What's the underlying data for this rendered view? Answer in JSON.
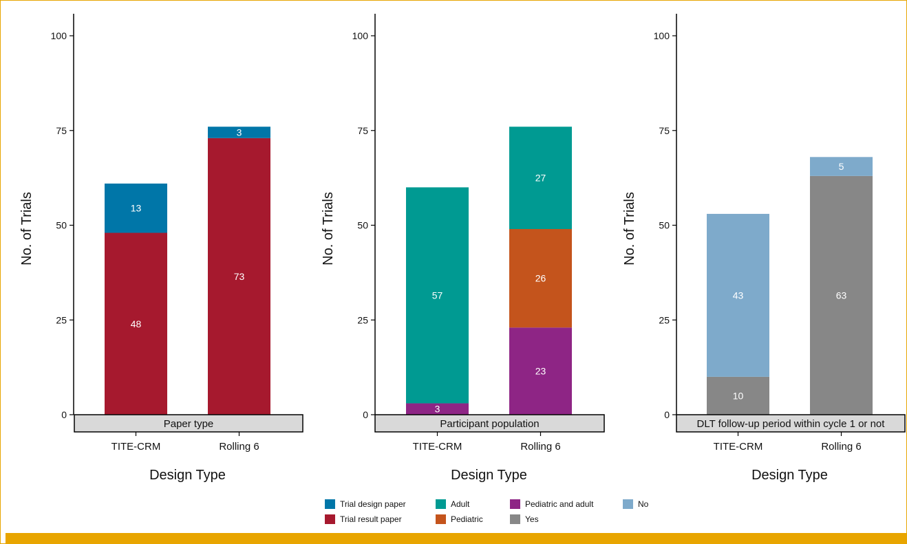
{
  "chart_data": [
    {
      "type": "bar",
      "stacked": true,
      "strip_title": "Paper type",
      "categories": [
        "TITE-CRM",
        "Rolling 6"
      ],
      "xlabel": "Design Type",
      "ylabel": "No. of Trials",
      "ylim": [
        0,
        100
      ],
      "yticks": [
        0,
        25,
        50,
        75,
        100
      ],
      "series": [
        {
          "name": "Trial result paper",
          "color": "#a6192e",
          "values": [
            48,
            73
          ]
        },
        {
          "name": "Trial design paper",
          "color": "#0076a8",
          "values": [
            13,
            3
          ]
        }
      ]
    },
    {
      "type": "bar",
      "stacked": true,
      "strip_title": "Participant population",
      "categories": [
        "TITE-CRM",
        "Rolling 6"
      ],
      "xlabel": "Design Type",
      "ylabel": "No. of Trials",
      "ylim": [
        0,
        100
      ],
      "yticks": [
        0,
        25,
        50,
        75,
        100
      ],
      "series": [
        {
          "name": "Pediatric and adult",
          "color": "#8e2585",
          "values": [
            3,
            23
          ]
        },
        {
          "name": "Pediatric",
          "color": "#c4541c",
          "values": [
            0,
            26
          ]
        },
        {
          "name": "Adult",
          "color": "#009a92",
          "values": [
            57,
            27
          ]
        }
      ]
    },
    {
      "type": "bar",
      "stacked": true,
      "strip_title": "DLT follow-up period within cycle 1 or not",
      "categories": [
        "TITE-CRM",
        "Rolling 6"
      ],
      "xlabel": "Design Type",
      "ylabel": "No. of Trials",
      "ylim": [
        0,
        100
      ],
      "yticks": [
        0,
        25,
        50,
        75,
        100
      ],
      "series": [
        {
          "name": "Yes",
          "color": "#878787",
          "values": [
            10,
            63
          ]
        },
        {
          "name": "No",
          "color": "#7eaacb",
          "values": [
            43,
            5
          ]
        }
      ]
    }
  ],
  "legend": {
    "placement": "bottom-center",
    "items": [
      {
        "label": "Trial design paper",
        "color": "#0076a8"
      },
      {
        "label": "Trial result paper",
        "color": "#a6192e"
      },
      {
        "label": "Adult",
        "color": "#009a92"
      },
      {
        "label": "Pediatric",
        "color": "#c4541c"
      },
      {
        "label": "Pediatric and adult",
        "color": "#8e2585"
      },
      {
        "label": "Yes",
        "color": "#878787"
      },
      {
        "label": "No",
        "color": "#7eaacb"
      }
    ]
  }
}
